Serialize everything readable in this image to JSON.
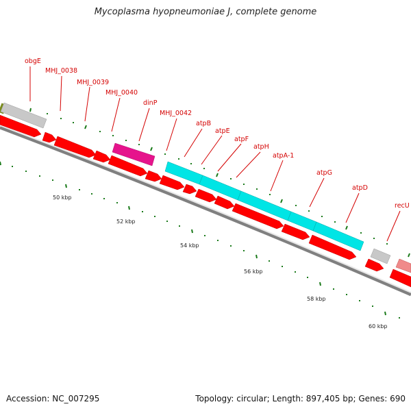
{
  "title": "Mycoplasma hyopneumoniae J, complete genome",
  "footer": {
    "accession": "Accession: NC_007295",
    "summary": "Topology: circular; Length: 897,405 bp; Genes: 690"
  },
  "colors": {
    "cds": "#ff0000",
    "label": "#d40000",
    "operon": "#00e5e5",
    "magenta": "#e6148c",
    "grey": "#c8c8c8",
    "pink": "#f08a8a",
    "olive": "#7a8c1e",
    "tick": "#1a7a1a",
    "backbone": "#808080"
  },
  "gene_labels": [
    "obgE",
    "MHJ_0038",
    "MHJ_0039",
    "MHJ_0040",
    "dinP",
    "MHJ_0042",
    "atpB",
    "atpE",
    "atpF",
    "atpH",
    "atpA-1",
    "atpG",
    "atpD",
    "recU"
  ],
  "scale_labels": [
    "50 kbp",
    "52 kbp",
    "54 kbp",
    "56 kbp",
    "58 kbp",
    "60 kbp"
  ]
}
